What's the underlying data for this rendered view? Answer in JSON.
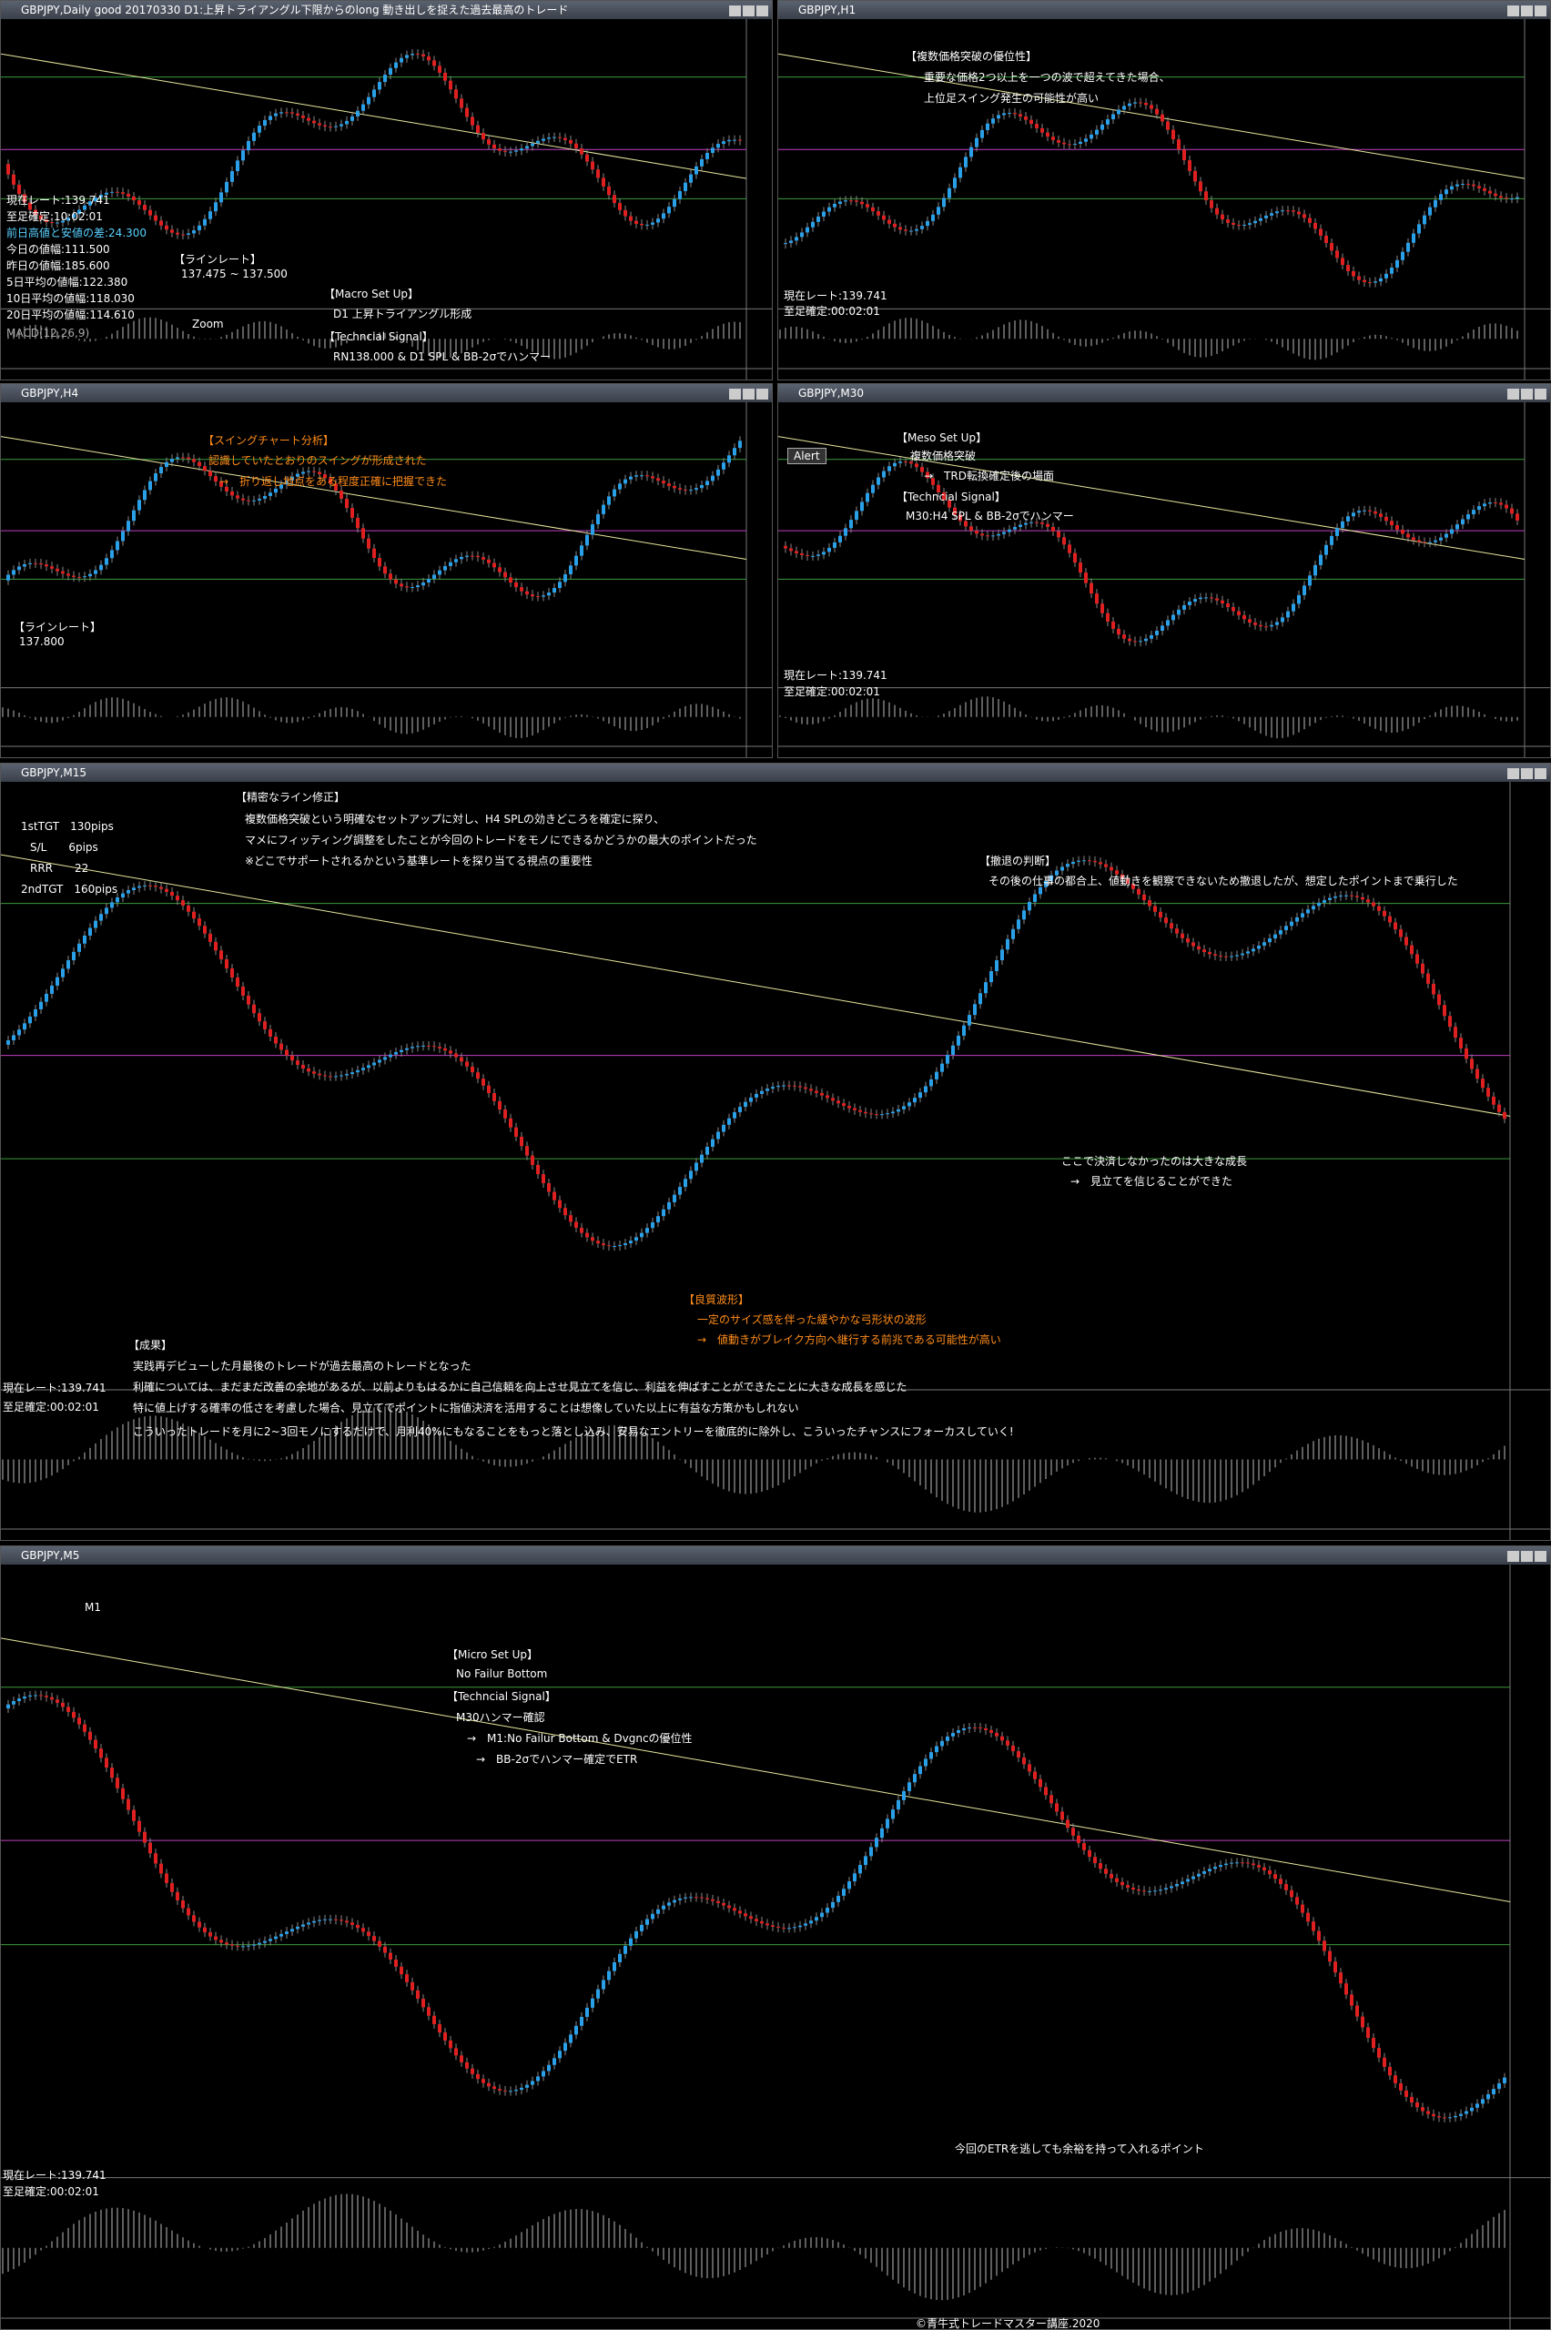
{
  "windows": [
    {
      "title": "GBPJPY,Daily   good 20170330 D1:上昇トライアングル下限からのlong 動き出しを捉えた過去最高のトレード",
      "texts": [
        "現在レート:139.741",
        "至足確定:10:02:01",
        "前日高値と安値の差:24.300",
        "今日の値幅:111.500",
        "昨日の値幅:185.600",
        "5日平均の値幅:122.380",
        "10日平均の値幅:118.030",
        "20日平均の値幅:114.610",
        "【ラインレート】",
        "137.475 ~ 137.500",
        "Zoom",
        "【Macro Set Up】",
        "D1 上昇トライアングル形成",
        "【Techncial Signal】",
        "RN138.000 & D1 SPL & BB-2σでハンマー",
        "MACD(12,26,9)"
      ]
    },
    {
      "title": "GBPJPY,H1",
      "texts": [
        "【複数価格突破の優位性】",
        "重要な価格2つ以上を一つの波で超えてきた場合、",
        "上位足スイング発生の可能性が高い",
        "現在レート:139.741",
        "至足確定:00:02:01"
      ]
    },
    {
      "title": "GBPJPY,H4",
      "texts": [
        "【スイングチャート分析】",
        "認識していたとおりのスイングが形成された",
        "→　折り返し地点をある程度正確に把握できた",
        "【ラインレート】",
        "137.800"
      ]
    },
    {
      "title": "GBPJPY,M30",
      "texts": [
        "Alert",
        "【Meso Set Up】",
        "複数価格突破",
        "→　TRD転換確定後の場面",
        "【Techncial Signal】",
        "M30:H4 SPL & BB-2σでハンマー",
        "現在レート:139.741",
        "至足確定:00:02:01"
      ]
    },
    {
      "title": "GBPJPY,M15",
      "texts": [
        "【精密なライン修正】",
        "複数価格突破という明確なセットアップに対し、H4 SPLの効きどころを確定に探り、",
        "マメにフィッティング調整をしたことが今回のトレードをモノにできるかどうかの最大のポイントだった",
        "※どこでサポートされるかという基準レートを探り当てる視点の重要性",
        "1stTGT　130pips",
        "S/L　　6pips",
        "RRR　　22",
        "2ndTGT　160pips",
        "【撤退の判断】",
        "その後の仕事の都合上、値動きを観察できないため撤退したが、想定したポイントまで乗行した",
        "ここで決済しなかったのは大きな成長",
        "→　見立てを信じることができた",
        "【良質波形】",
        "一定のサイズ感を伴った緩やかな弓形状の波形",
        "→　値動きがブレイク方向へ継行する前兆である可能性が高い",
        "【成果】",
        "実践再デビューした月最後のトレードが過去最高のトレードとなった",
        "利確については、まだまだ改善の余地があるが、以前よりもはるかに自己信頼を向上させ見立てを信じ、利益を伸ばすことができたことに大きな成長を感じた",
        "特に値上げする確率の低さを考慮した場合、見立てでポイントに指値決済を活用することは想像していた以上に有益な方策かもしれない",
        "こういったトレードを月に2~3回モノにするだけで、月利40%にもなることをもっと落とし込み、安易なエントリーを徹底的に除外し、こういったチャンスにフォーカスしていく!",
        "現在レート:139.741",
        "至足確定:00:02:01"
      ]
    },
    {
      "title": "GBPJPY,M5",
      "texts": [
        "M1",
        "【Micro Set Up】",
        "No Failur Bottom",
        "【Techncial Signal】",
        "M30ハンマー確認",
        "→　M1:No Failur Bottom & Dvgncの優位性",
        "→　BB-2σでハンマー確定でETR",
        "今回のETRを逃しても余裕を持って入れるポイント",
        "現在レート:139.741",
        "至足確定:00:02:01",
        "©青牛式トレードマスター講座.2020"
      ]
    }
  ]
}
